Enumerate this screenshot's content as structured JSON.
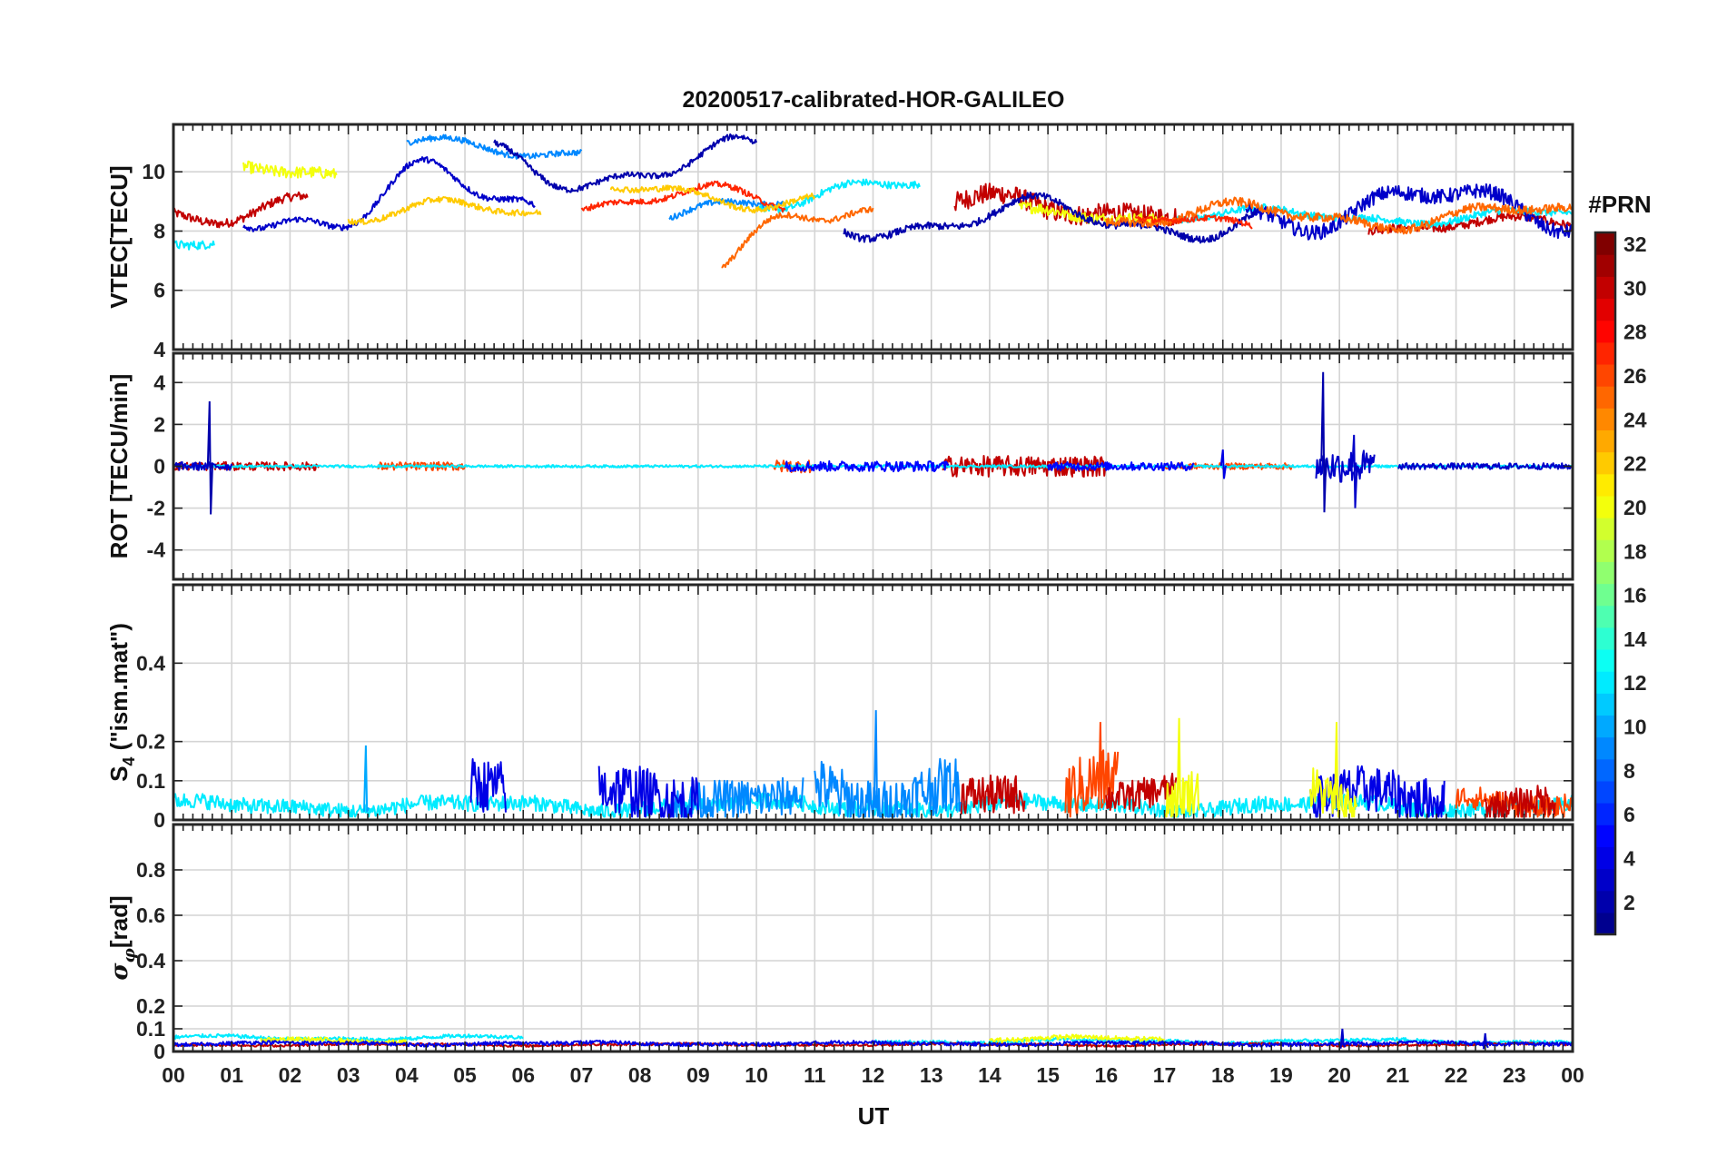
{
  "chart_data": {
    "type": "line",
    "title": "20200517-calibrated-HOR-GALILEO",
    "xlabel": "UT",
    "x_ticks": [
      "00",
      "01",
      "02",
      "03",
      "04",
      "05",
      "06",
      "07",
      "08",
      "09",
      "10",
      "11",
      "12",
      "13",
      "14",
      "15",
      "16",
      "17",
      "18",
      "19",
      "20",
      "21",
      "22",
      "23",
      "00"
    ],
    "xlim": [
      0,
      24
    ],
    "grid": true,
    "colorbar": {
      "label": "#PRN",
      "colormap": "jet",
      "range": [
        1,
        32
      ],
      "ticks": [
        "2",
        "4",
        "6",
        "8",
        "10",
        "12",
        "14",
        "16",
        "18",
        "20",
        "22",
        "24",
        "26",
        "28",
        "30",
        "32"
      ],
      "tick_values": [
        2,
        4,
        6,
        8,
        10,
        12,
        14,
        16,
        18,
        20,
        22,
        24,
        26,
        28,
        30,
        32
      ],
      "jet_colors": [
        "#00008f",
        "#0000ff",
        "#0080ff",
        "#00ffff",
        "#80ff80",
        "#ffff00",
        "#ff8000",
        "#ff0000",
        "#800000"
      ]
    },
    "panels": [
      {
        "ylabel": "VTEC[TECU]",
        "ylim": [
          4,
          11.6
        ],
        "y_ticks": [
          "4",
          "6",
          "8",
          "10"
        ],
        "y_tick_values": [
          4,
          6,
          8,
          10
        ],
        "series": [
          {
            "prn": 30,
            "segments": [
              {
                "start": 0.0,
                "end": 2.3,
                "base": 8.8,
                "amp": 0.6,
                "noise": 0.15
              },
              {
                "start": 13.4,
                "end": 17.2,
                "base": 8.8,
                "amp": 0.5,
                "noise": 0.35
              },
              {
                "start": 20.5,
                "end": 24.0,
                "base": 8.2,
                "amp": 0.3,
                "noise": 0.15
              }
            ]
          },
          {
            "prn": 20,
            "segments": [
              {
                "start": 1.2,
                "end": 2.8,
                "base": 9.9,
                "amp": 0.4,
                "noise": 0.2
              },
              {
                "start": 14.5,
                "end": 17.0,
                "base": 8.5,
                "amp": 0.3,
                "noise": 0.2
              }
            ]
          },
          {
            "prn": 12,
            "segments": [
              {
                "start": 0.0,
                "end": 0.7,
                "base": 7.4,
                "amp": 0.5,
                "noise": 0.15
              },
              {
                "start": 10.0,
                "end": 12.8,
                "base": 9.3,
                "amp": 0.6,
                "noise": 0.12
              },
              {
                "start": 17.2,
                "end": 24.0,
                "base": 8.5,
                "amp": 0.3,
                "noise": 0.12
              }
            ]
          },
          {
            "prn": 9,
            "segments": [
              {
                "start": 4.0,
                "end": 7.0,
                "base": 10.8,
                "amp": 0.4,
                "noise": 0.1
              },
              {
                "start": 8.5,
                "end": 10.5,
                "base": 8.7,
                "amp": 0.5,
                "noise": 0.1
              }
            ]
          },
          {
            "prn": 3,
            "segments": [
              {
                "start": 1.2,
                "end": 6.2,
                "base": 9.0,
                "amp": 1.5,
                "noise": 0.1
              },
              {
                "start": 18.4,
                "end": 24.0,
                "base": 8.8,
                "amp": 0.9,
                "noise": 0.25
              }
            ]
          },
          {
            "prn": 2,
            "segments": [
              {
                "start": 5.5,
                "end": 10.0,
                "base": 10.2,
                "amp": 1.0,
                "noise": 0.1
              },
              {
                "start": 11.5,
                "end": 18.6,
                "base": 8.4,
                "amp": 0.8,
                "noise": 0.12
              }
            ]
          },
          {
            "prn": 25,
            "segments": [
              {
                "start": 9.4,
                "end": 12.0,
                "base": 7.8,
                "amp": 1.4,
                "noise": 0.1
              },
              {
                "start": 16.0,
                "end": 24.0,
                "base": 8.5,
                "amp": 0.5,
                "noise": 0.15
              }
            ]
          },
          {
            "prn": 27,
            "segments": [
              {
                "start": 7.0,
                "end": 10.5,
                "base": 9.0,
                "amp": 0.6,
                "noise": 0.1
              },
              {
                "start": 16.5,
                "end": 18.5,
                "base": 8.2,
                "amp": 0.4,
                "noise": 0.1
              }
            ]
          },
          {
            "prn": 22,
            "segments": [
              {
                "start": 3.0,
                "end": 6.3,
                "base": 8.6,
                "amp": 0.5,
                "noise": 0.1
              },
              {
                "start": 7.5,
                "end": 11.0,
                "base": 9.2,
                "amp": 0.5,
                "noise": 0.1
              }
            ]
          }
        ]
      },
      {
        "ylabel": "ROT [TECU/min]",
        "ylim": [
          -5.4,
          5.4
        ],
        "y_ticks": [
          "-4",
          "-2",
          "0",
          "2",
          "4"
        ],
        "y_tick_values": [
          -4,
          -2,
          0,
          2,
          4
        ],
        "series": [
          {
            "prn": 30,
            "segments": [
              {
                "start": 13.2,
                "end": 16.0,
                "base": 0,
                "amp": 0,
                "noise": 0.5
              },
              {
                "start": 0.0,
                "end": 2.5,
                "base": 0,
                "amp": 0,
                "noise": 0.2
              }
            ]
          },
          {
            "prn": 26,
            "segments": [
              {
                "start": 3.5,
                "end": 5.0,
                "base": 0,
                "amp": 0,
                "noise": 0.2
              },
              {
                "start": 10.3,
                "end": 11.0,
                "base": 0,
                "amp": 0,
                "noise": 0.3
              },
              {
                "start": 17.0,
                "end": 19.2,
                "base": 0,
                "amp": 0,
                "noise": 0.15
              }
            ]
          },
          {
            "prn": 12,
            "segments": [
              {
                "start": 0.0,
                "end": 24.0,
                "base": 0,
                "amp": 0,
                "noise": 0.06
              }
            ]
          },
          {
            "prn": 5,
            "segments": [
              {
                "start": 10.5,
                "end": 13.3,
                "base": 0,
                "amp": 0,
                "noise": 0.25
              },
              {
                "start": 15.0,
                "end": 17.5,
                "base": 0,
                "amp": 0,
                "noise": 0.2
              }
            ]
          },
          {
            "prn": 3,
            "segments": [
              {
                "start": 19.6,
                "end": 20.6,
                "base": 0,
                "amp": 0,
                "noise": 0.8
              },
              {
                "start": 0.0,
                "end": 1.0,
                "base": 0,
                "amp": 0,
                "noise": 0.2
              },
              {
                "start": 21.0,
                "end": 24.0,
                "base": 0,
                "amp": 0,
                "noise": 0.15
              }
            ]
          }
        ],
        "spikes": [
          {
            "prn": 2,
            "x": 0.62,
            "y0": -2.3,
            "y1": 3.1
          },
          {
            "prn": 2,
            "x": 19.72,
            "y0": -2.2,
            "y1": 4.5
          },
          {
            "prn": 3,
            "x": 20.25,
            "y0": -2.0,
            "y1": 1.5
          },
          {
            "prn": 4,
            "x": 18.0,
            "y0": -0.6,
            "y1": 0.8
          }
        ]
      },
      {
        "ylabel": "S4 (\"ism.mat\")",
        "ylim": [
          0,
          0.6
        ],
        "y_ticks": [
          "0",
          "0.1",
          "0.2",
          "0.4"
        ],
        "y_tick_values": [
          0,
          0.1,
          0.2,
          0.4
        ],
        "series": [
          {
            "prn": 12,
            "segments": [
              {
                "start": 0.0,
                "end": 24.0,
                "base": 0.035,
                "amp": 0.015,
                "noise": 0.02
              }
            ]
          },
          {
            "prn": 26,
            "segments": [
              {
                "start": 15.3,
                "end": 16.2,
                "base": 0.09,
                "amp": 0.05,
                "noise": 0.08
              },
              {
                "start": 22.0,
                "end": 24.0,
                "base": 0.05,
                "amp": 0.02,
                "noise": 0.03
              }
            ]
          },
          {
            "prn": 30,
            "segments": [
              {
                "start": 13.5,
                "end": 14.6,
                "base": 0.07,
                "amp": 0.02,
                "noise": 0.05
              },
              {
                "start": 16.0,
                "end": 17.2,
                "base": 0.06,
                "amp": 0.02,
                "noise": 0.04
              },
              {
                "start": 22.5,
                "end": 23.7,
                "base": 0.05,
                "amp": 0.02,
                "noise": 0.04
              }
            ]
          },
          {
            "prn": 9,
            "segments": [
              {
                "start": 11.0,
                "end": 13.5,
                "base": 0.08,
                "amp": 0.05,
                "noise": 0.07
              },
              {
                "start": 8.5,
                "end": 10.8,
                "base": 0.05,
                "amp": 0.02,
                "noise": 0.05
              }
            ]
          },
          {
            "prn": 4,
            "segments": [
              {
                "start": 5.1,
                "end": 5.7,
                "base": 0.06,
                "amp": 0.03,
                "noise": 0.07
              },
              {
                "start": 7.3,
                "end": 9.0,
                "base": 0.07,
                "amp": 0.03,
                "noise": 0.07
              },
              {
                "start": 19.5,
                "end": 21.8,
                "base": 0.05,
                "amp": 0.03,
                "noise": 0.06
              }
            ]
          },
          {
            "prn": 20,
            "segments": [
              {
                "start": 17.0,
                "end": 17.6,
                "base": 0.06,
                "amp": 0.04,
                "noise": 0.06
              },
              {
                "start": 19.5,
                "end": 20.3,
                "base": 0.06,
                "amp": 0.04,
                "noise": 0.06
              }
            ]
          }
        ],
        "spikes": [
          {
            "prn": 9,
            "x": 12.05,
            "y0": 0.03,
            "y1": 0.28
          },
          {
            "prn": 26,
            "x": 15.9,
            "y0": 0.03,
            "y1": 0.25
          },
          {
            "prn": 20,
            "x": 17.25,
            "y0": 0.03,
            "y1": 0.26
          },
          {
            "prn": 20,
            "x": 19.95,
            "y0": 0.03,
            "y1": 0.25
          },
          {
            "prn": 10,
            "x": 3.3,
            "y0": 0.02,
            "y1": 0.19
          }
        ]
      },
      {
        "ylabel": "σ_φ[rad]",
        "ylim": [
          0,
          1.0
        ],
        "y_ticks": [
          "0",
          "0.1",
          "0.2",
          "0.4",
          "0.6",
          "0.8"
        ],
        "y_tick_values": [
          0,
          0.1,
          0.2,
          0.4,
          0.6,
          0.8
        ],
        "series": [
          {
            "prn": 12,
            "segments": [
              {
                "start": 0.0,
                "end": 6.0,
                "base": 0.06,
                "amp": 0.01,
                "noise": 0.008
              },
              {
                "start": 12.0,
                "end": 24.0,
                "base": 0.045,
                "amp": 0.01,
                "noise": 0.008
              }
            ]
          },
          {
            "prn": 20,
            "segments": [
              {
                "start": 1.5,
                "end": 4.0,
                "base": 0.05,
                "amp": 0.01,
                "noise": 0.01
              },
              {
                "start": 14.0,
                "end": 17.0,
                "base": 0.055,
                "amp": 0.01,
                "noise": 0.01
              }
            ]
          },
          {
            "prn": 30,
            "segments": [
              {
                "start": 0.0,
                "end": 24.0,
                "base": 0.03,
                "amp": 0.005,
                "noise": 0.005
              }
            ]
          },
          {
            "prn": 4,
            "segments": [
              {
                "start": 0.0,
                "end": 24.0,
                "base": 0.035,
                "amp": 0.006,
                "noise": 0.008
              }
            ]
          }
        ],
        "spikes": [
          {
            "prn": 3,
            "x": 20.05,
            "y0": 0.03,
            "y1": 0.1
          },
          {
            "prn": 3,
            "x": 22.5,
            "y0": 0.03,
            "y1": 0.08
          }
        ]
      }
    ]
  }
}
